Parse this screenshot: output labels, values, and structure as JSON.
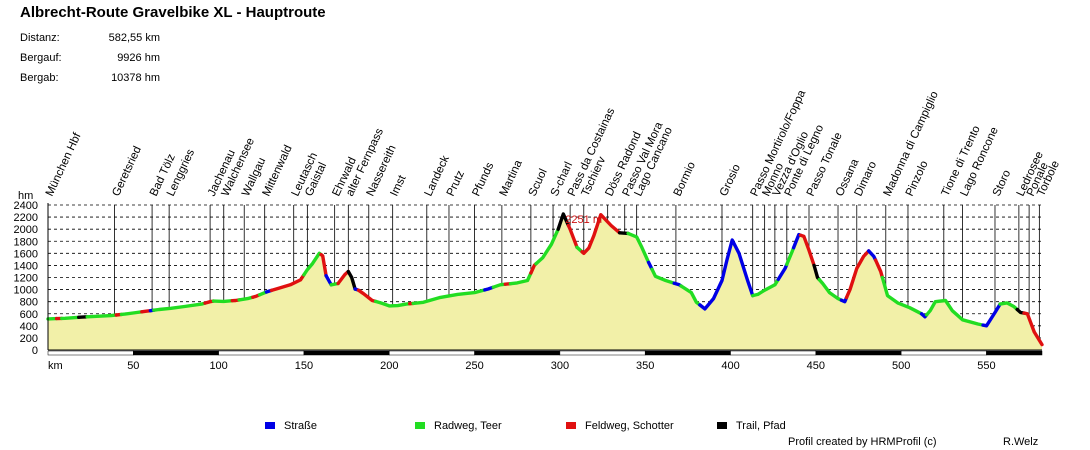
{
  "title": "Albrecht-Route Gravelbike XL - Hauptroute",
  "stats": [
    {
      "label": "Distanz:",
      "value": "582,55 km"
    },
    {
      "label": "Bergauf:",
      "value": "9926 hm"
    },
    {
      "label": "Bergab:",
      "value": "10378 hm"
    }
  ],
  "colors": {
    "fill": "#f2f0a8",
    "strasse": "#0000e6",
    "radweg": "#22dd22",
    "feldweg": "#e01010",
    "trail": "#000000",
    "peak_label": "#cc1111"
  },
  "chart_data": {
    "type": "area",
    "title": "Albrecht-Route Gravelbike XL - Hauptroute",
    "xlabel": "km",
    "ylabel": "hm",
    "xlim": [
      0,
      582.55
    ],
    "ylim": [
      0,
      2400
    ],
    "x_ticks": [
      0,
      50,
      100,
      150,
      200,
      250,
      300,
      350,
      400,
      450,
      500,
      550
    ],
    "x_tick_labels": [
      "0",
      "50",
      "100",
      "150",
      "200",
      "250",
      "300",
      "350",
      "400",
      "450",
      "500",
      "550"
    ],
    "y_ticks": [
      0,
      200,
      400,
      600,
      800,
      1000,
      1200,
      1400,
      1600,
      1800,
      2000,
      2200,
      2400
    ],
    "y_tick_labels": [
      "0",
      "200",
      "400",
      "600",
      "800",
      "1000",
      "1200",
      "1400",
      "1600",
      "1800",
      "2000",
      "2200",
      "2400"
    ],
    "grid": true,
    "peak": {
      "km": 302,
      "label": "2251 m"
    },
    "profile": [
      [
        0,
        515
      ],
      [
        10,
        525
      ],
      [
        20,
        545
      ],
      [
        30,
        560
      ],
      [
        37,
        570
      ],
      [
        45,
        595
      ],
      [
        52,
        620
      ],
      [
        57,
        640
      ],
      [
        65,
        670
      ],
      [
        72,
        690
      ],
      [
        80,
        720
      ],
      [
        90,
        760
      ],
      [
        95,
        800
      ],
      [
        97,
        810
      ],
      [
        103,
        805
      ],
      [
        110,
        820
      ],
      [
        117,
        850
      ],
      [
        122,
        890
      ],
      [
        128,
        960
      ],
      [
        135,
        1020
      ],
      [
        142,
        1080
      ],
      [
        148,
        1160
      ],
      [
        152,
        1330
      ],
      [
        155,
        1430
      ],
      [
        159,
        1600
      ],
      [
        161,
        1560
      ],
      [
        163,
        1230
      ],
      [
        166,
        1080
      ],
      [
        170,
        1100
      ],
      [
        174,
        1250
      ],
      [
        176,
        1300
      ],
      [
        178,
        1200
      ],
      [
        180,
        1010
      ],
      [
        182,
        990
      ],
      [
        185,
        930
      ],
      [
        190,
        820
      ],
      [
        195,
        780
      ],
      [
        200,
        730
      ],
      [
        205,
        735
      ],
      [
        210,
        760
      ],
      [
        220,
        790
      ],
      [
        230,
        870
      ],
      [
        240,
        920
      ],
      [
        250,
        950
      ],
      [
        258,
        1010
      ],
      [
        265,
        1080
      ],
      [
        275,
        1110
      ],
      [
        281,
        1150
      ],
      [
        285,
        1400
      ],
      [
        290,
        1530
      ],
      [
        295,
        1750
      ],
      [
        299,
        2000
      ],
      [
        302,
        2251
      ],
      [
        306,
        2000
      ],
      [
        310,
        1700
      ],
      [
        314,
        1600
      ],
      [
        317,
        1690
      ],
      [
        320,
        1900
      ],
      [
        324,
        2240
      ],
      [
        330,
        2060
      ],
      [
        335,
        1940
      ],
      [
        340,
        1930
      ],
      [
        345,
        1870
      ],
      [
        348,
        1700
      ],
      [
        352,
        1450
      ],
      [
        356,
        1220
      ],
      [
        362,
        1150
      ],
      [
        370,
        1080
      ],
      [
        377,
        950
      ],
      [
        380,
        790
      ],
      [
        385,
        680
      ],
      [
        390,
        850
      ],
      [
        395,
        1150
      ],
      [
        398,
        1500
      ],
      [
        401,
        1820
      ],
      [
        405,
        1600
      ],
      [
        410,
        1150
      ],
      [
        413,
        900
      ],
      [
        416,
        920
      ],
      [
        420,
        990
      ],
      [
        426,
        1080
      ],
      [
        432,
        1350
      ],
      [
        436,
        1620
      ],
      [
        440,
        1910
      ],
      [
        443,
        1880
      ],
      [
        446,
        1650
      ],
      [
        449,
        1400
      ],
      [
        451,
        1200
      ],
      [
        454,
        1100
      ],
      [
        458,
        950
      ],
      [
        463,
        850
      ],
      [
        467,
        800
      ],
      [
        470,
        1000
      ],
      [
        474,
        1350
      ],
      [
        478,
        1550
      ],
      [
        481,
        1640
      ],
      [
        484,
        1550
      ],
      [
        488,
        1300
      ],
      [
        492,
        900
      ],
      [
        498,
        780
      ],
      [
        505,
        700
      ],
      [
        512,
        600
      ],
      [
        514,
        550
      ],
      [
        517,
        650
      ],
      [
        520,
        800
      ],
      [
        526,
        820
      ],
      [
        530,
        650
      ],
      [
        536,
        500
      ],
      [
        545,
        430
      ],
      [
        550,
        400
      ],
      [
        555,
        620
      ],
      [
        558,
        760
      ],
      [
        562,
        780
      ],
      [
        566,
        720
      ],
      [
        570,
        620
      ],
      [
        574,
        600
      ],
      [
        578,
        300
      ],
      [
        582.55,
        90
      ]
    ],
    "surface_segments": [
      {
        "from": 0,
        "to": 5,
        "type": "radweg"
      },
      {
        "from": 5,
        "to": 8,
        "type": "feldweg"
      },
      {
        "from": 8,
        "to": 18,
        "type": "radweg"
      },
      {
        "from": 18,
        "to": 23,
        "type": "trail"
      },
      {
        "from": 23,
        "to": 40,
        "type": "radweg"
      },
      {
        "from": 40,
        "to": 43,
        "type": "feldweg"
      },
      {
        "from": 43,
        "to": 55,
        "type": "radweg"
      },
      {
        "from": 55,
        "to": 60,
        "type": "feldweg"
      },
      {
        "from": 60,
        "to": 62,
        "type": "strasse"
      },
      {
        "from": 62,
        "to": 92,
        "type": "radweg"
      },
      {
        "from": 92,
        "to": 97,
        "type": "feldweg"
      },
      {
        "from": 97,
        "to": 108,
        "type": "radweg"
      },
      {
        "from": 108,
        "to": 112,
        "type": "feldweg"
      },
      {
        "from": 112,
        "to": 120,
        "type": "radweg"
      },
      {
        "from": 120,
        "to": 124,
        "type": "feldweg"
      },
      {
        "from": 124,
        "to": 128,
        "type": "radweg"
      },
      {
        "from": 128,
        "to": 131,
        "type": "strasse"
      },
      {
        "from": 131,
        "to": 150,
        "type": "feldweg"
      },
      {
        "from": 150,
        "to": 160,
        "type": "radweg"
      },
      {
        "from": 160,
        "to": 163,
        "type": "feldweg"
      },
      {
        "from": 163,
        "to": 166,
        "type": "strasse"
      },
      {
        "from": 166,
        "to": 170,
        "type": "radweg"
      },
      {
        "from": 170,
        "to": 176,
        "type": "feldweg"
      },
      {
        "from": 176,
        "to": 180,
        "type": "trail"
      },
      {
        "from": 180,
        "to": 182,
        "type": "strasse"
      },
      {
        "from": 182,
        "to": 192,
        "type": "feldweg"
      },
      {
        "from": 192,
        "to": 212,
        "type": "radweg"
      },
      {
        "from": 212,
        "to": 214,
        "type": "feldweg"
      },
      {
        "from": 214,
        "to": 256,
        "type": "radweg"
      },
      {
        "from": 256,
        "to": 261,
        "type": "strasse"
      },
      {
        "from": 261,
        "to": 268,
        "type": "radweg"
      },
      {
        "from": 268,
        "to": 271,
        "type": "feldweg"
      },
      {
        "from": 271,
        "to": 283,
        "type": "radweg"
      },
      {
        "from": 283,
        "to": 286,
        "type": "feldweg"
      },
      {
        "from": 286,
        "to": 299,
        "type": "radweg"
      },
      {
        "from": 299,
        "to": 305,
        "type": "trail"
      },
      {
        "from": 305,
        "to": 310,
        "type": "feldweg"
      },
      {
        "from": 310,
        "to": 313,
        "type": "radweg"
      },
      {
        "from": 313,
        "to": 335,
        "type": "feldweg"
      },
      {
        "from": 335,
        "to": 340,
        "type": "trail"
      },
      {
        "from": 340,
        "to": 352,
        "type": "radweg"
      },
      {
        "from": 352,
        "to": 354,
        "type": "strasse"
      },
      {
        "from": 354,
        "to": 367,
        "type": "radweg"
      },
      {
        "from": 367,
        "to": 371,
        "type": "strasse"
      },
      {
        "from": 371,
        "to": 382,
        "type": "radweg"
      },
      {
        "from": 382,
        "to": 413,
        "type": "strasse"
      },
      {
        "from": 413,
        "to": 428,
        "type": "radweg"
      },
      {
        "from": 428,
        "to": 433,
        "type": "strasse"
      },
      {
        "from": 433,
        "to": 437,
        "type": "radweg"
      },
      {
        "from": 437,
        "to": 441,
        "type": "strasse"
      },
      {
        "from": 441,
        "to": 449,
        "type": "feldweg"
      },
      {
        "from": 449,
        "to": 452,
        "type": "trail"
      },
      {
        "from": 452,
        "to": 465,
        "type": "radweg"
      },
      {
        "from": 465,
        "to": 468,
        "type": "strasse"
      },
      {
        "from": 468,
        "to": 481,
        "type": "feldweg"
      },
      {
        "from": 481,
        "to": 485,
        "type": "strasse"
      },
      {
        "from": 485,
        "to": 489,
        "type": "feldweg"
      },
      {
        "from": 489,
        "to": 512,
        "type": "radweg"
      },
      {
        "from": 512,
        "to": 515,
        "type": "strasse"
      },
      {
        "from": 515,
        "to": 548,
        "type": "radweg"
      },
      {
        "from": 548,
        "to": 558,
        "type": "strasse"
      },
      {
        "from": 558,
        "to": 568,
        "type": "radweg"
      },
      {
        "from": 568,
        "to": 572,
        "type": "trail"
      },
      {
        "from": 572,
        "to": 582.55,
        "type": "feldweg"
      }
    ],
    "waypoints": [
      {
        "km": 0,
        "label": "München Hbf"
      },
      {
        "km": 39,
        "label": "Geretsried"
      },
      {
        "km": 61,
        "label": "Bad Tölz"
      },
      {
        "km": 71,
        "label": "Lenggries"
      },
      {
        "km": 95,
        "label": "Jachenau"
      },
      {
        "km": 103,
        "label": "Walchensee"
      },
      {
        "km": 115,
        "label": "Wallgau"
      },
      {
        "km": 127,
        "label": "Mittenwald"
      },
      {
        "km": 144,
        "label": "Leutasch"
      },
      {
        "km": 152,
        "label": "Gaistal"
      },
      {
        "km": 168,
        "label": "Ehrwald"
      },
      {
        "km": 176,
        "label": "alter Fernpass"
      },
      {
        "km": 188,
        "label": "Nassereith"
      },
      {
        "km": 202,
        "label": "Imst"
      },
      {
        "km": 222,
        "label": "Landeck"
      },
      {
        "km": 235,
        "label": "Prutz"
      },
      {
        "km": 250,
        "label": "Pfunds"
      },
      {
        "km": 266,
        "label": "Martina"
      },
      {
        "km": 283,
        "label": "Scuol"
      },
      {
        "km": 296,
        "label": "S-charl"
      },
      {
        "km": 306,
        "label": "Pass da Costainas"
      },
      {
        "km": 314,
        "label": "Tschierv"
      },
      {
        "km": 328,
        "label": "Döss Radond"
      },
      {
        "km": 338,
        "label": "Passo Val Mora"
      },
      {
        "km": 345,
        "label": "Lago Cancano"
      },
      {
        "km": 368,
        "label": "Bormio"
      },
      {
        "km": 395,
        "label": "Grosio"
      },
      {
        "km": 413,
        "label": "Passo Mortirolo/Foppa"
      },
      {
        "km": 420,
        "label": "Monno"
      },
      {
        "km": 426,
        "label": "Vezza d'Oglio"
      },
      {
        "km": 433,
        "label": "Ponte di Legno"
      },
      {
        "km": 446,
        "label": "Passo Tonale"
      },
      {
        "km": 463,
        "label": "Ossana"
      },
      {
        "km": 474,
        "label": "Dimaro"
      },
      {
        "km": 491,
        "label": "Madonna di Campiglio"
      },
      {
        "km": 504,
        "label": "Pinzolo"
      },
      {
        "km": 525,
        "label": "Tione di Trento"
      },
      {
        "km": 536,
        "label": "Lago Roncone"
      },
      {
        "km": 555,
        "label": "Storo"
      },
      {
        "km": 569,
        "label": "Ledrosee"
      },
      {
        "km": 575,
        "label": "Ponale"
      },
      {
        "km": 581,
        "label": "Torbole"
      }
    ],
    "legend": [
      {
        "key": "strasse",
        "label": "Straße"
      },
      {
        "key": "radweg",
        "label": "Radweg, Teer"
      },
      {
        "key": "feldweg",
        "label": "Feldweg, Schotter"
      },
      {
        "key": "trail",
        "label": "Trail, Pfad"
      }
    ]
  },
  "credit": {
    "left": "Profil created by HRMProfil (c)",
    "right": "R.Welz"
  }
}
